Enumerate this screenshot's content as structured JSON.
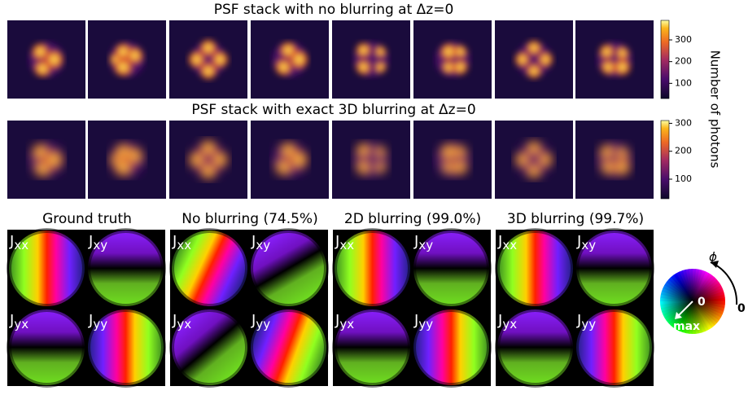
{
  "psf_rows": [
    {
      "title": "PSF stack with no blurring at Δz=0",
      "colorbar": {
        "range": [
          30,
          390
        ],
        "ticks": [
          100,
          200,
          300
        ]
      }
    },
    {
      "title": "PSF stack with exact 3D blurring at Δz=0",
      "colorbar": {
        "range": [
          30,
          310
        ],
        "ticks": [
          100,
          200,
          300
        ]
      }
    }
  ],
  "colorbar_label": "Number of photons",
  "panels": [
    {
      "title": "Ground truth"
    },
    {
      "title": "No blurring (74.5%)"
    },
    {
      "title": "2D blurring (99.0%)"
    },
    {
      "title": "3D blurring (99.7%)"
    }
  ],
  "element_labels": [
    {
      "base": "J",
      "sub": "xx"
    },
    {
      "base": "J",
      "sub": "xy"
    },
    {
      "base": "J",
      "sub": "yx"
    },
    {
      "base": "J",
      "sub": "yy"
    }
  ],
  "legend": {
    "phase": "ϕ",
    "center": "0",
    "edge": "0",
    "amplitude": "max"
  }
}
